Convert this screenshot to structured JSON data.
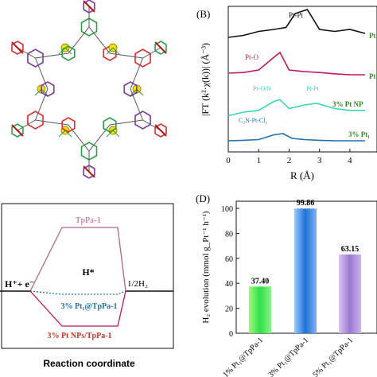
{
  "colors": {
    "black": "#111111",
    "red": "#c2185b",
    "teal": "#3bd6b0",
    "blue": "#1f6fb5",
    "green": "#2e8b1e",
    "maroon": "#c0392b",
    "mauve": "#b5638a",
    "lime": "#4fe35a",
    "ring_green": "#2f9e44",
    "ring_red": "#d93030",
    "ring_purple": "#7a3aa0",
    "pt_yellow": "#f2e20a"
  },
  "panelB": {
    "label": "(B)",
    "ylabel": "|FT (k²·χ(k))| (Å⁻³)",
    "xlabel": "R (Å)",
    "xticks": [
      "0",
      "1",
      "2",
      "3",
      "4"
    ],
    "peak_labels": [
      "Pt-Pt",
      "Pt-O",
      "Pt-O/N",
      "Pt-Pt",
      "C₂N-Pt-Cl₂"
    ],
    "series_labels": [
      "Pt",
      "Pt",
      "3% Pt NP",
      "3% Pt₁"
    ]
  },
  "panelC": {
    "state_left": "H⁺+ e⁻",
    "state_mid": "H*",
    "state_right": "1/2H₂",
    "curve_top": "TpPa-1",
    "curve_mid": "3% Pt₁@TpPa-1",
    "curve_bottom": "3% Pt NPs/TpPa-1",
    "xlabel": "Reaction coordinate"
  },
  "panelD": {
    "label": "(D)",
    "ylabel": "H₂ evolution (mmol g_Pt⁻¹ h⁻¹)",
    "yticks": [
      "0",
      "20",
      "40",
      "60",
      "80",
      "100"
    ]
  },
  "chart_data": [
    {
      "type": "line",
      "title": "(B)",
      "xlabel": "R (Å)",
      "ylabel": "|FT (k²·χ(k))| (Å⁻³)",
      "xlim": [
        0,
        4.5
      ],
      "series": [
        {
          "name": "Pt",
          "x": [
            0,
            0.5,
            1,
            1.5,
            1.9,
            2.2,
            2.6,
            3,
            3.5,
            4,
            4.5
          ],
          "values": [
            0.3,
            0.35,
            0.45,
            0.5,
            0.55,
            0.9,
            1.0,
            0.5,
            0.45,
            0.5,
            0.4
          ]
        },
        {
          "name": "Pt",
          "x": [
            0,
            0.5,
            1,
            1.5,
            1.7,
            2.0,
            2.5,
            3,
            3.5,
            4,
            4.5
          ],
          "values": [
            0.2,
            0.22,
            0.3,
            0.7,
            0.85,
            0.3,
            0.25,
            0.22,
            0.18,
            0.15,
            0.15
          ]
        },
        {
          "name": "3% Pt NP",
          "x": [
            0,
            0.5,
            1,
            1.5,
            1.7,
            2.0,
            2.5,
            2.9,
            3.5,
            4,
            4.5
          ],
          "values": [
            0.1,
            0.2,
            0.25,
            0.5,
            0.55,
            0.3,
            0.4,
            0.45,
            0.3,
            0.25,
            0.25
          ]
        },
        {
          "name": "3% Pt₁",
          "x": [
            0,
            0.5,
            1,
            1.5,
            1.8,
            2.1,
            2.5,
            3,
            3.5,
            4,
            4.5
          ],
          "values": [
            0.1,
            0.12,
            0.15,
            0.35,
            0.4,
            0.2,
            0.15,
            0.12,
            0.1,
            0.1,
            0.1
          ]
        }
      ]
    },
    {
      "type": "line",
      "title": "",
      "xlabel": "Reaction coordinate",
      "ylabel": "",
      "series": [
        {
          "name": "TpPa-1",
          "values": [
            0,
            1.0,
            1.0,
            0
          ]
        },
        {
          "name": "3% Pt₁@TpPa-1",
          "values": [
            0,
            -0.05,
            -0.05,
            0
          ]
        },
        {
          "name": "3% Pt NPs/TpPa-1",
          "values": [
            0,
            -0.55,
            -0.55,
            0
          ]
        }
      ]
    },
    {
      "type": "bar",
      "title": "(D)",
      "xlabel": "",
      "ylabel": "H₂ evolution (mmol g_Pt⁻¹ h⁻¹)",
      "ylim": [
        0,
        100
      ],
      "categories": [
        "1% Pt₁@TpPa-1",
        "3% Pt₁@TpPa-1",
        "5% Pt₁@TpPa-1"
      ],
      "values": [
        37.4,
        99.86,
        63.15
      ],
      "value_labels": [
        "37.40",
        "99.86",
        "63.15"
      ],
      "colors": [
        "#4fe35a",
        "#1f6fb5",
        "#b69adc"
      ]
    }
  ]
}
